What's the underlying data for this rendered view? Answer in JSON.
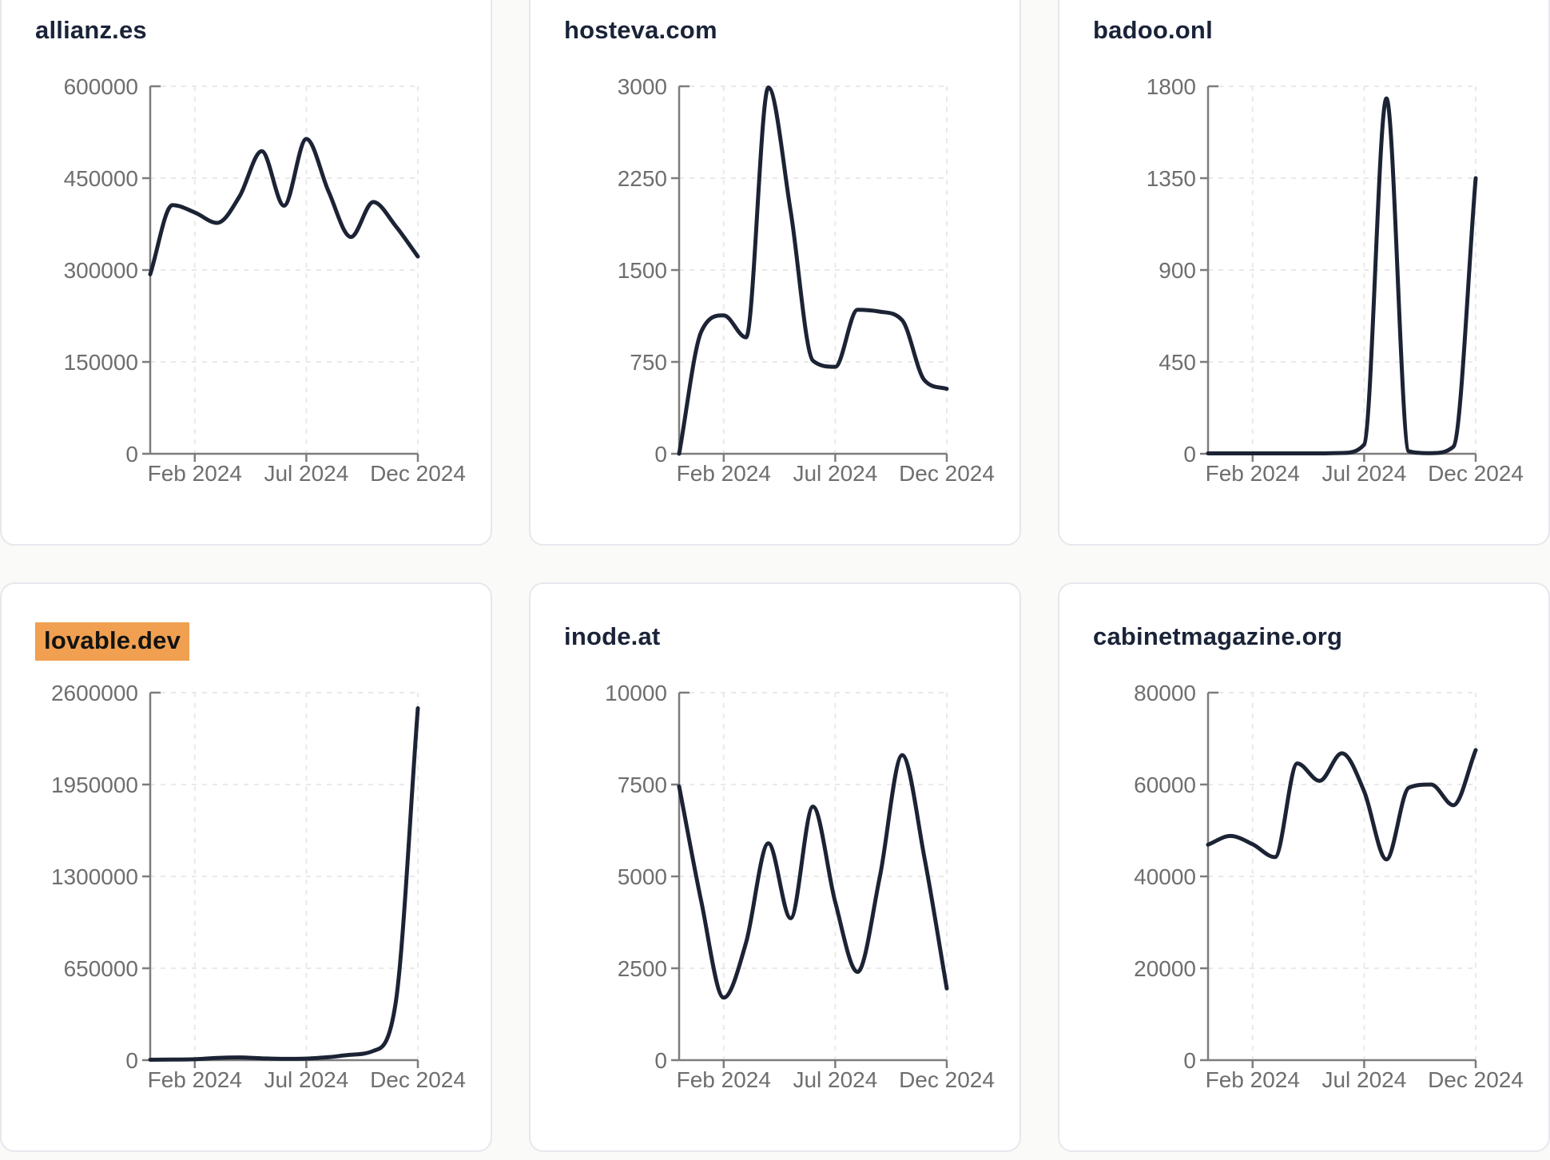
{
  "page": {
    "background": "#fafaf9"
  },
  "theme": {
    "card_bg": "#ffffff",
    "card_border": "#e7e7ee",
    "title_color": "#1a2338",
    "line_color": "#1b2334",
    "axis_color": "#7d7d7d",
    "tick_label_color": "#6e6e6e",
    "grid_color": "#e9e9e9",
    "highlight_bg": "#f0a050",
    "highlight_text": "#131313"
  },
  "axis": {
    "x_tick_labels": [
      "Feb 2024",
      "Jul 2024",
      "Dec 2024"
    ],
    "x_tick_month_index": [
      2,
      7,
      12
    ],
    "x_monthly": [
      "Dec 2023",
      "Jan 2024",
      "Feb 2024",
      "Mar 2024",
      "Apr 2024",
      "May 2024",
      "Jun 2024",
      "Jul 2024",
      "Aug 2024",
      "Sep 2024",
      "Oct 2024",
      "Nov 2024",
      "Dec 2024"
    ],
    "grid": "dashed",
    "legend": "none"
  },
  "chart_data": [
    {
      "type": "line",
      "title": "allianz.es",
      "highlighted": false,
      "ylim": [
        0,
        600000
      ],
      "y_ticks": [
        0,
        150000,
        300000,
        450000,
        600000
      ],
      "values": [
        293000,
        406000,
        394000,
        377000,
        420000,
        494000,
        405000,
        514000,
        428000,
        354000,
        411000,
        372000,
        322000
      ]
    },
    {
      "type": "line",
      "title": "hosteva.com",
      "highlighted": false,
      "ylim": [
        0,
        3000
      ],
      "y_ticks": [
        0,
        750,
        1500,
        2250,
        3000
      ],
      "values": [
        0,
        1000,
        1130,
        950,
        2990,
        1980,
        760,
        710,
        1175,
        1160,
        1090,
        600,
        530
      ]
    },
    {
      "type": "line",
      "title": "badoo.onl",
      "highlighted": false,
      "ylim": [
        0,
        1800
      ],
      "y_ticks": [
        0,
        450,
        900,
        1350,
        1800
      ],
      "values": [
        2,
        2,
        2,
        2,
        2,
        2,
        4,
        45,
        1740,
        12,
        3,
        35,
        1350
      ]
    },
    {
      "type": "line",
      "title": "lovable.dev",
      "highlighted": true,
      "ylim": [
        0,
        2600000
      ],
      "y_ticks": [
        0,
        650000,
        1300000,
        1950000,
        2600000
      ],
      "values": [
        3000,
        4000,
        6000,
        16000,
        19000,
        13000,
        9000,
        11000,
        21000,
        38000,
        65000,
        400000,
        2490000
      ]
    },
    {
      "type": "line",
      "title": "inode.at",
      "highlighted": false,
      "ylim": [
        0,
        10000
      ],
      "y_ticks": [
        0,
        2500,
        5000,
        7500,
        10000
      ],
      "values": [
        7450,
        4300,
        1700,
        3200,
        5900,
        3860,
        6900,
        4300,
        2400,
        5000,
        8300,
        5500,
        1950
      ]
    },
    {
      "type": "line",
      "title": "cabinetmagazine.org",
      "highlighted": false,
      "ylim": [
        0,
        80000
      ],
      "y_ticks": [
        0,
        20000,
        40000,
        60000,
        80000
      ],
      "values": [
        46900,
        48800,
        47000,
        44200,
        64600,
        60800,
        66800,
        58500,
        43700,
        59300,
        60000,
        55500,
        67500
      ]
    }
  ]
}
